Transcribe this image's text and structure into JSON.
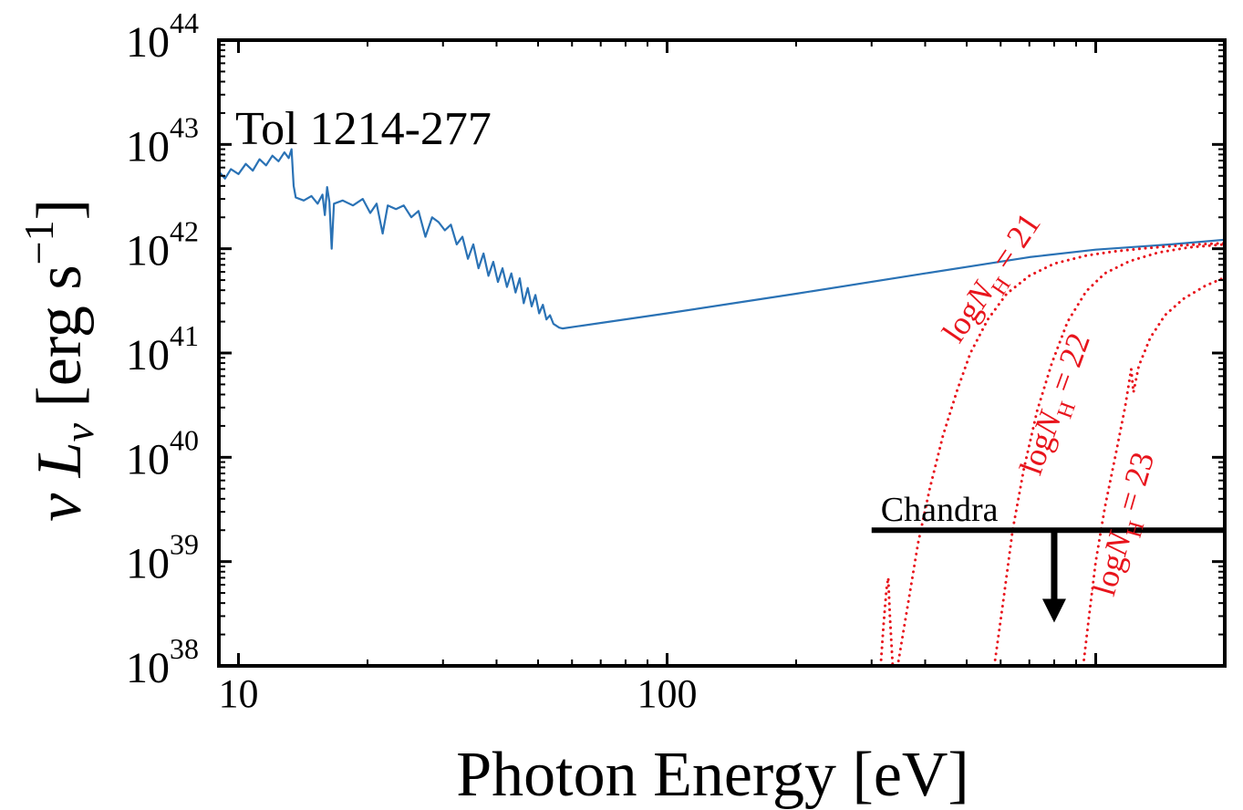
{
  "chart_data": {
    "type": "line",
    "xscale": "log",
    "yscale": "log",
    "xlim": [
      9,
      2000
    ],
    "ylim": [
      1e+38,
      1e+44
    ],
    "xlabel": "Photon Energy [eV]",
    "ylabel": {
      "prefix": "ν L",
      "subscript": "ν",
      "units_open": "[erg s",
      "units_exp": "−1",
      "units_close": "]"
    },
    "x_tick_labels": [
      {
        "value": 10,
        "label": "10"
      },
      {
        "value": 100,
        "label": "100"
      }
    ],
    "y_tick_labels": [
      {
        "value": 1e+38,
        "base": "10",
        "exp": "38"
      },
      {
        "value": 1e+39,
        "base": "10",
        "exp": "39"
      },
      {
        "value": 1e+40,
        "base": "10",
        "exp": "40"
      },
      {
        "value": 1e+41,
        "base": "10",
        "exp": "41"
      },
      {
        "value": 1e+42,
        "base": "10",
        "exp": "42"
      },
      {
        "value": 1e+43,
        "base": "10",
        "exp": "43"
      },
      {
        "value": 1e+44,
        "base": "10",
        "exp": "44"
      }
    ],
    "title_annotation": "Tol 1214-277",
    "colors": {
      "spectrum": "#2a72b5",
      "absorbed": "#e8141c",
      "axes": "#000000"
    },
    "series": [
      {
        "style": "solid",
        "color": "#2a72b5",
        "points": [
          [
            9.0,
            5.5e+42
          ],
          [
            9.3,
            4.7e+42
          ],
          [
            9.6,
            5.8e+42
          ],
          [
            10.0,
            5.2e+42
          ],
          [
            10.4,
            6.5e+42
          ],
          [
            10.8,
            5.6e+42
          ],
          [
            11.2,
            7.2e+42
          ],
          [
            11.6,
            6.3e+42
          ],
          [
            12.0,
            7.8e+42
          ],
          [
            12.4,
            6.9e+42
          ],
          [
            12.8,
            8.4e+42
          ],
          [
            13.1,
            7.4e+42
          ],
          [
            13.3,
            9e+42
          ],
          [
            13.45,
            4e+42
          ],
          [
            13.6,
            3.1e+42
          ],
          [
            14.2,
            2.9e+42
          ],
          [
            14.8,
            3.2e+42
          ],
          [
            15.3,
            2.7e+42
          ],
          [
            15.7,
            3.3e+42
          ],
          [
            15.9,
            2.1e+42
          ],
          [
            16.1,
            3.9e+42
          ],
          [
            16.3,
            2.8e+42
          ],
          [
            16.5,
            1e+42
          ],
          [
            16.7,
            2.7e+42
          ],
          [
            17.5,
            2.9e+42
          ],
          [
            18.5,
            2.6e+42
          ],
          [
            19.5,
            3e+42
          ],
          [
            20.3,
            2.2e+42
          ],
          [
            21.0,
            2.7e+42
          ],
          [
            21.7,
            1.4e+42
          ],
          [
            22.3,
            2.6e+42
          ],
          [
            23.3,
            2.4e+42
          ],
          [
            24.3,
            2.6e+42
          ],
          [
            25.3,
            2e+42
          ],
          [
            26.3,
            2.3e+42
          ],
          [
            27.3,
            1.3e+42
          ],
          [
            28.3,
            2e+42
          ],
          [
            29.3,
            1.8e+42
          ],
          [
            30.3,
            1.5e+42
          ],
          [
            31.3,
            1.7e+42
          ],
          [
            32.3,
            1.1e+42
          ],
          [
            33.3,
            1.3e+42
          ],
          [
            34.3,
            8e+41
          ],
          [
            35.3,
            1.1e+42
          ],
          [
            36.3,
            6.5e+41
          ],
          [
            37.3,
            9e+41
          ],
          [
            38.3,
            5.5e+41
          ],
          [
            39.3,
            7.5e+41
          ],
          [
            40.3,
            4.8e+41
          ],
          [
            41.3,
            6.5e+41
          ],
          [
            42.3,
            4.3e+41
          ],
          [
            43.3,
            5.8e+41
          ],
          [
            44.3,
            3.8e+41
          ],
          [
            45.3,
            5.2e+41
          ],
          [
            46.3,
            3e+41
          ],
          [
            47.3,
            4.2e+41
          ],
          [
            48.3,
            2.8e+41
          ],
          [
            49.3,
            3.6e+41
          ],
          [
            50.3,
            2.4e+41
          ],
          [
            51.3,
            2.9e+41
          ],
          [
            52.3,
            2.1e+41
          ],
          [
            53.3,
            2.3e+41
          ],
          [
            54.3,
            1.9e+41
          ],
          [
            56.0,
            1.75e+41
          ],
          [
            57.0,
            1.72e+41
          ],
          [
            100,
            2.4e+41
          ],
          [
            200,
            3.7e+41
          ],
          [
            400,
            5.8e+41
          ],
          [
            700,
            8.3e+41
          ],
          [
            1000,
            9.8e+41
          ],
          [
            1500,
            1.1e+42
          ],
          [
            2000,
            1.22e+42
          ]
        ]
      },
      {
        "name": "logN_H = 21",
        "style": "dotted",
        "color": "#e8141c",
        "points": [
          [
            315,
            1e+38
          ],
          [
            320,
            2.5e+38
          ],
          [
            325,
            5.5e+38
          ],
          [
            328,
            7e+38
          ],
          [
            331,
            3e+38
          ],
          [
            336,
            1e+38
          ],
          [
            345,
            1e+38
          ],
          [
            365,
            4e+38
          ],
          [
            385,
            1.5e+39
          ],
          [
            410,
            5e+39
          ],
          [
            440,
            1.6e+40
          ],
          [
            475,
            4.4e+40
          ],
          [
            510,
            1e+41
          ],
          [
            560,
            2.1e+41
          ],
          [
            620,
            3.7e+41
          ],
          [
            700,
            5.5e+41
          ],
          [
            800,
            7.2e+41
          ],
          [
            950,
            8.6e+41
          ],
          [
            1100,
            9.4e+41
          ],
          [
            1300,
            1.01e+42
          ],
          [
            1550,
            1.07e+42
          ],
          [
            1800,
            1.11e+42
          ],
          [
            2000,
            1.13e+42
          ]
        ]
      },
      {
        "name": "logN_H = 22",
        "style": "dotted",
        "color": "#e8141c",
        "points": [
          [
            580,
            1e+38
          ],
          [
            610,
            4.5e+38
          ],
          [
            640,
            2e+39
          ],
          [
            680,
            7.8e+39
          ],
          [
            730,
            2.8e+40
          ],
          [
            790,
            8e+40
          ],
          [
            860,
            2e+41
          ],
          [
            950,
            3.9e+41
          ],
          [
            1050,
            5.8e+41
          ],
          [
            1200,
            7.6e+41
          ],
          [
            1400,
            9.2e+41
          ],
          [
            1650,
            1.03e+42
          ],
          [
            2000,
            1.1e+42
          ]
        ]
      },
      {
        "name": "logN_H = 23",
        "style": "dotted",
        "color": "#e8141c",
        "points": [
          [
            935,
            1e+38
          ],
          [
            965,
            3e+38
          ],
          [
            1000,
            1e+39
          ],
          [
            1050,
            3.3e+39
          ],
          [
            1110,
            1e+40
          ],
          [
            1170,
            3e+40
          ],
          [
            1210,
            7e+40
          ],
          [
            1225,
            4.2e+40
          ],
          [
            1260,
            7.5e+40
          ],
          [
            1340,
            1.4e+41
          ],
          [
            1450,
            2.3e+41
          ],
          [
            1600,
            3.3e+41
          ],
          [
            1800,
            4.4e+41
          ],
          [
            2000,
            5.3e+41
          ]
        ]
      }
    ],
    "curve_labels": [
      {
        "x": 480,
        "y": 1.2e+41,
        "rot": -56,
        "pre": "log",
        "N": "N",
        "sub": "H",
        "post": " = 21"
      },
      {
        "x": 740,
        "y": 6.5e+39,
        "rot": -70,
        "pre": "log",
        "N": "N",
        "sub": "H",
        "post": " = 22"
      },
      {
        "x": 1100,
        "y": 4.5e+38,
        "rot": -74,
        "pre": "log",
        "N": "N",
        "sub": "H",
        "post": " = 23"
      }
    ],
    "upper_limit": {
      "label": "Chandra",
      "x_range": [
        300,
        2000
      ],
      "y": 2e+39,
      "arrow_x": 800,
      "arrow_to_y": 2.6e+38
    },
    "grid": false,
    "legend": "none"
  }
}
